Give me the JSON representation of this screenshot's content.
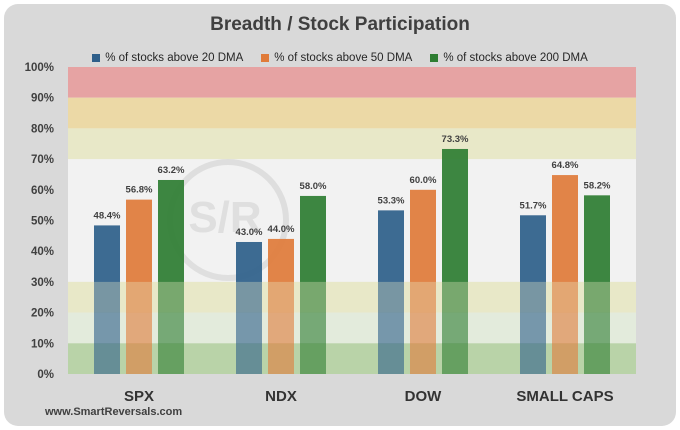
{
  "chart_data": {
    "type": "bar",
    "title": "Breadth / Stock Participation",
    "categories": [
      "SPX",
      "NDX",
      "DOW",
      "SMALL CAPS"
    ],
    "series": [
      {
        "name": "% of stocks above 20 DMA",
        "color": "#2e5f8a",
        "values": [
          48.4,
          43.0,
          53.3,
          51.7
        ],
        "labels": [
          "48.4%",
          "43.0%",
          "53.3%",
          "51.7%"
        ]
      },
      {
        "name": "% of stocks above 50 DMA",
        "color": "#e07b39",
        "values": [
          56.8,
          44.0,
          60.0,
          64.8
        ],
        "labels": [
          "56.8%",
          "44.0%",
          "60.0%",
          "64.8%"
        ]
      },
      {
        "name": "% of stocks above 200 DMA",
        "color": "#2e7d32",
        "values": [
          63.2,
          58.0,
          73.3,
          58.2
        ],
        "labels": [
          "63.2%",
          "58.0%",
          "73.3%",
          "58.2%"
        ]
      }
    ],
    "ylim": [
      0,
      100
    ],
    "yticks": [
      "0%",
      "10%",
      "20%",
      "30%",
      "40%",
      "50%",
      "60%",
      "70%",
      "80%",
      "90%",
      "100%"
    ],
    "bands": [
      {
        "from": 90,
        "to": 100,
        "color": "#e6a3a3"
      },
      {
        "from": 80,
        "to": 90,
        "color": "#ecd9a6"
      },
      {
        "from": 70,
        "to": 80,
        "color": "#e8e8c8"
      },
      {
        "from": 20,
        "to": 30,
        "color": "#e8e8c8"
      },
      {
        "from": 10,
        "to": 20,
        "color": "#e3ecdc"
      },
      {
        "from": 0,
        "to": 10,
        "color": "#b9d3a8"
      }
    ],
    "grid": false,
    "legend_position": "top"
  },
  "footer": "www.SmartReversals.com"
}
